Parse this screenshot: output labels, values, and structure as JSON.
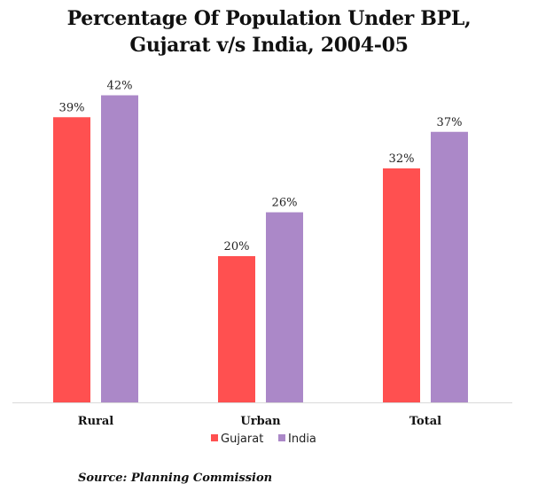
{
  "chart_data": {
    "type": "bar",
    "title_lines": [
      "Percentage Of Population Under BPL,",
      "Gujarat v/s India, 2004-05"
    ],
    "categories": [
      "Rural",
      "Urban",
      "Total"
    ],
    "series": [
      {
        "name": "Gujarat",
        "values": [
          39,
          20,
          32
        ],
        "labels": [
          "39%",
          "20%",
          "32%"
        ],
        "color": "#ff5050"
      },
      {
        "name": "India",
        "values": [
          42,
          26,
          37
        ],
        "labels": [
          "42%",
          "26%",
          "37%"
        ],
        "color": "#ab88c8"
      }
    ],
    "ylim": [
      0,
      50
    ],
    "grid": false,
    "legend_position": "bottom",
    "axis_color": "#d9d9d9"
  },
  "source": "Source: Planning Commission"
}
